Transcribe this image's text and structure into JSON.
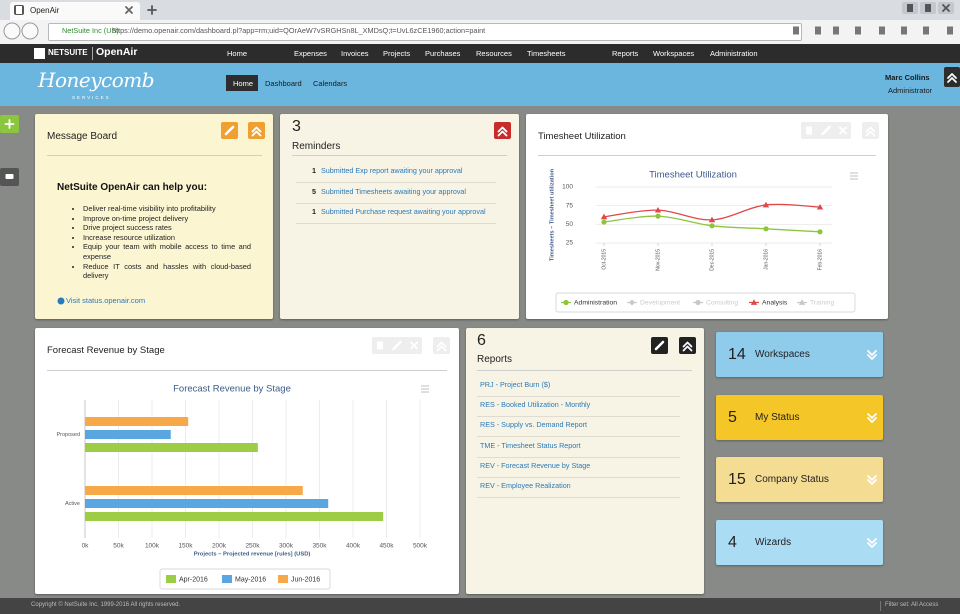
{
  "browser": {
    "tab_title": "OpenAir",
    "site_identity": "NetSuite Inc (US)",
    "url": "https://demo.openair.com/dashboard.pl?app=rm;uid=QOrAeW7vSRGHSn8L_XMDsQ;t=UvL6zCE1960;action=paint"
  },
  "nav": {
    "brand": "NETSUITE",
    "product": "OpenAir",
    "items": [
      "Home",
      "Expenses",
      "Invoices",
      "Projects",
      "Purchases",
      "Resources",
      "Timesheets",
      "Reports",
      "Workspaces",
      "Administration"
    ]
  },
  "header": {
    "logo": "Honeycomb",
    "logo_sub": "SERVICES",
    "tabs": [
      "Home",
      "Dashboard",
      "Calendars"
    ],
    "user": "Marc Collins",
    "role": "Administrator"
  },
  "message_board": {
    "title": "Message Board",
    "heading": "NetSuite OpenAir can help you:",
    "bullets": [
      "Deliver real-time visibility into profitability",
      "Improve on-time project delivery",
      "Drive project success rates",
      "Increase resource utilization",
      "Equip your team with mobile access to time and expense",
      "Reduce IT costs and hassles with cloud-based delivery"
    ],
    "link": "Visit status.openair.com"
  },
  "reminders": {
    "count": 3,
    "title": "Reminders",
    "items": [
      {
        "count": 1,
        "text": "Submitted Exp report awaiting your approval"
      },
      {
        "count": 5,
        "text": "Submitted Timesheets awaiting your approval"
      },
      {
        "count": 1,
        "text": "Submitted Purchase request awaiting your approval"
      }
    ]
  },
  "timesheet_panel": {
    "title": "Timesheet Utilization"
  },
  "forecast_panel": {
    "title": "Forecast Revenue by Stage"
  },
  "reports": {
    "count": 6,
    "title": "Reports",
    "items": [
      "PRJ - Project Burn ($)",
      "RES - Booked Utilization - Monthly",
      "RES - Supply vs. Demand Report",
      "TME - Timesheet Status Report",
      "REV - Forecast Revenue by Stage",
      "REV - Employee Realization"
    ]
  },
  "tiles": [
    {
      "count": 14,
      "label": "Workspaces",
      "color": "#8fcbea"
    },
    {
      "count": 5,
      "label": "My Status",
      "color": "#f5c628"
    },
    {
      "count": 15,
      "label": "Company Status",
      "color": "#f4dc92"
    },
    {
      "count": 4,
      "label": "Wizards",
      "color": "#aadcf3"
    }
  ],
  "footer": {
    "copyright": "Copyright © NetSuite Inc. 1999-2016 All rights reserved.",
    "filter": "Filter set: All Access"
  },
  "chart_data": [
    {
      "type": "line",
      "title": "Timesheet Utilization",
      "y_label": "Timesheets – Timesheet utilization",
      "categories": [
        "Oct-2015",
        "Nov-2015",
        "Dec-2015",
        "Jan-2016",
        "Feb-2016"
      ],
      "ylim": [
        25,
        100
      ],
      "yticks": [
        25,
        50,
        75,
        100
      ],
      "grid": true,
      "series": [
        {
          "name": "Administration",
          "color": "#8cc63f",
          "marker": "circle",
          "visible": true,
          "values": [
            53,
            61,
            48,
            44,
            40
          ]
        },
        {
          "name": "Development",
          "color": "#c8c8c8",
          "marker": "diamond",
          "visible": false,
          "values": [
            null,
            null,
            null,
            null,
            null
          ]
        },
        {
          "name": "Consulting",
          "color": "#c8c8c8",
          "marker": "circle",
          "visible": false,
          "values": [
            null,
            null,
            null,
            null,
            null
          ]
        },
        {
          "name": "Analysis",
          "color": "#e04848",
          "marker": "triangle",
          "visible": true,
          "values": [
            60,
            69,
            56,
            76,
            73
          ]
        },
        {
          "name": "Training",
          "color": "#c8c8c8",
          "marker": "triangle",
          "visible": false,
          "values": [
            null,
            null,
            null,
            null,
            null
          ]
        }
      ]
    },
    {
      "type": "bar",
      "orientation": "horizontal",
      "title": "Forecast Revenue by Stage",
      "x_label": "Projects – Projected revenue [rules] (USD)",
      "categories": [
        "Proposed",
        "Active"
      ],
      "xlim": [
        0,
        500000
      ],
      "xticks": [
        {
          "value": 0,
          "label": "0k"
        },
        {
          "value": 50000,
          "label": "50k"
        },
        {
          "value": 100000,
          "label": "100k"
        },
        {
          "value": 150000,
          "label": "150k"
        },
        {
          "value": 200000,
          "label": "200k"
        },
        {
          "value": 250000,
          "label": "250k"
        },
        {
          "value": 300000,
          "label": "300k"
        },
        {
          "value": 350000,
          "label": "350k"
        },
        {
          "value": 400000,
          "label": "400k"
        },
        {
          "value": 450000,
          "label": "450k"
        },
        {
          "value": 500000,
          "label": "500k"
        }
      ],
      "grid": true,
      "series": [
        {
          "name": "Apr-2016",
          "color": "#9ccd45",
          "values": [
            258000,
            445000
          ]
        },
        {
          "name": "May-2016",
          "color": "#5aa6e0",
          "values": [
            128000,
            363000
          ]
        },
        {
          "name": "Jun-2016",
          "color": "#f7a848",
          "values": [
            154000,
            325000
          ]
        }
      ]
    }
  ]
}
